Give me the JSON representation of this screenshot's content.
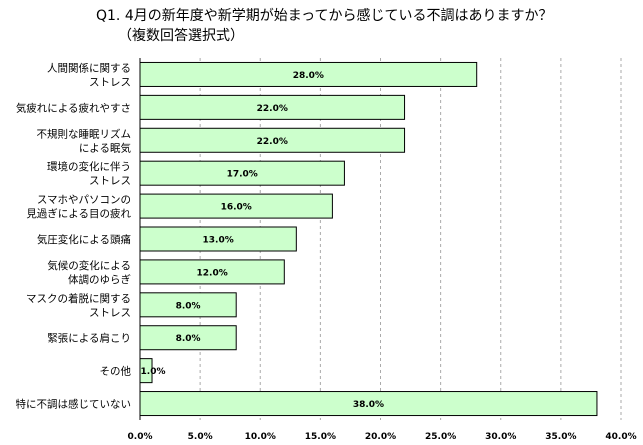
{
  "chart_data": {
    "type": "bar",
    "orientation": "horizontal",
    "title": [
      "Q1. 4月の新年度や新学期が始まってから感じている不調はありますか？",
      "（複数回答選択式）"
    ],
    "categories": [
      [
        "人間関係に関する",
        "ストレス"
      ],
      [
        "気疲れによる疲れやすさ"
      ],
      [
        "不規則な睡眠リズム",
        "による眠気"
      ],
      [
        "環境の変化に伴う",
        "ストレス"
      ],
      [
        "スマホやパソコンの",
        "見過ぎによる目の疲れ"
      ],
      [
        "気圧変化による頭痛"
      ],
      [
        "気候の変化による",
        "体調のゆらぎ"
      ],
      [
        "マスクの着脱に関する",
        "ストレス"
      ],
      [
        "緊張による肩こり"
      ],
      [
        "その他"
      ],
      [
        "特に不調は感じていない"
      ]
    ],
    "values": [
      28.0,
      22.0,
      22.0,
      17.0,
      16.0,
      13.0,
      12.0,
      8.0,
      8.0,
      1.0,
      38.0
    ],
    "value_labels": [
      "28.0%",
      "22.0%",
      "22.0%",
      "17.0%",
      "16.0%",
      "13.0%",
      "12.0%",
      "8.0%",
      "8.0%",
      "1.0%",
      "38.0%"
    ],
    "x_ticks": [
      "0.0%",
      "5.0%",
      "10.0%",
      "15.0%",
      "20.0%",
      "25.0%",
      "30.0%",
      "35.0%",
      "40.0%"
    ],
    "xlim": [
      0,
      40
    ],
    "grid": "vertical-dashed",
    "bar_color": "#ccffcc",
    "bar_border": "#000000"
  }
}
